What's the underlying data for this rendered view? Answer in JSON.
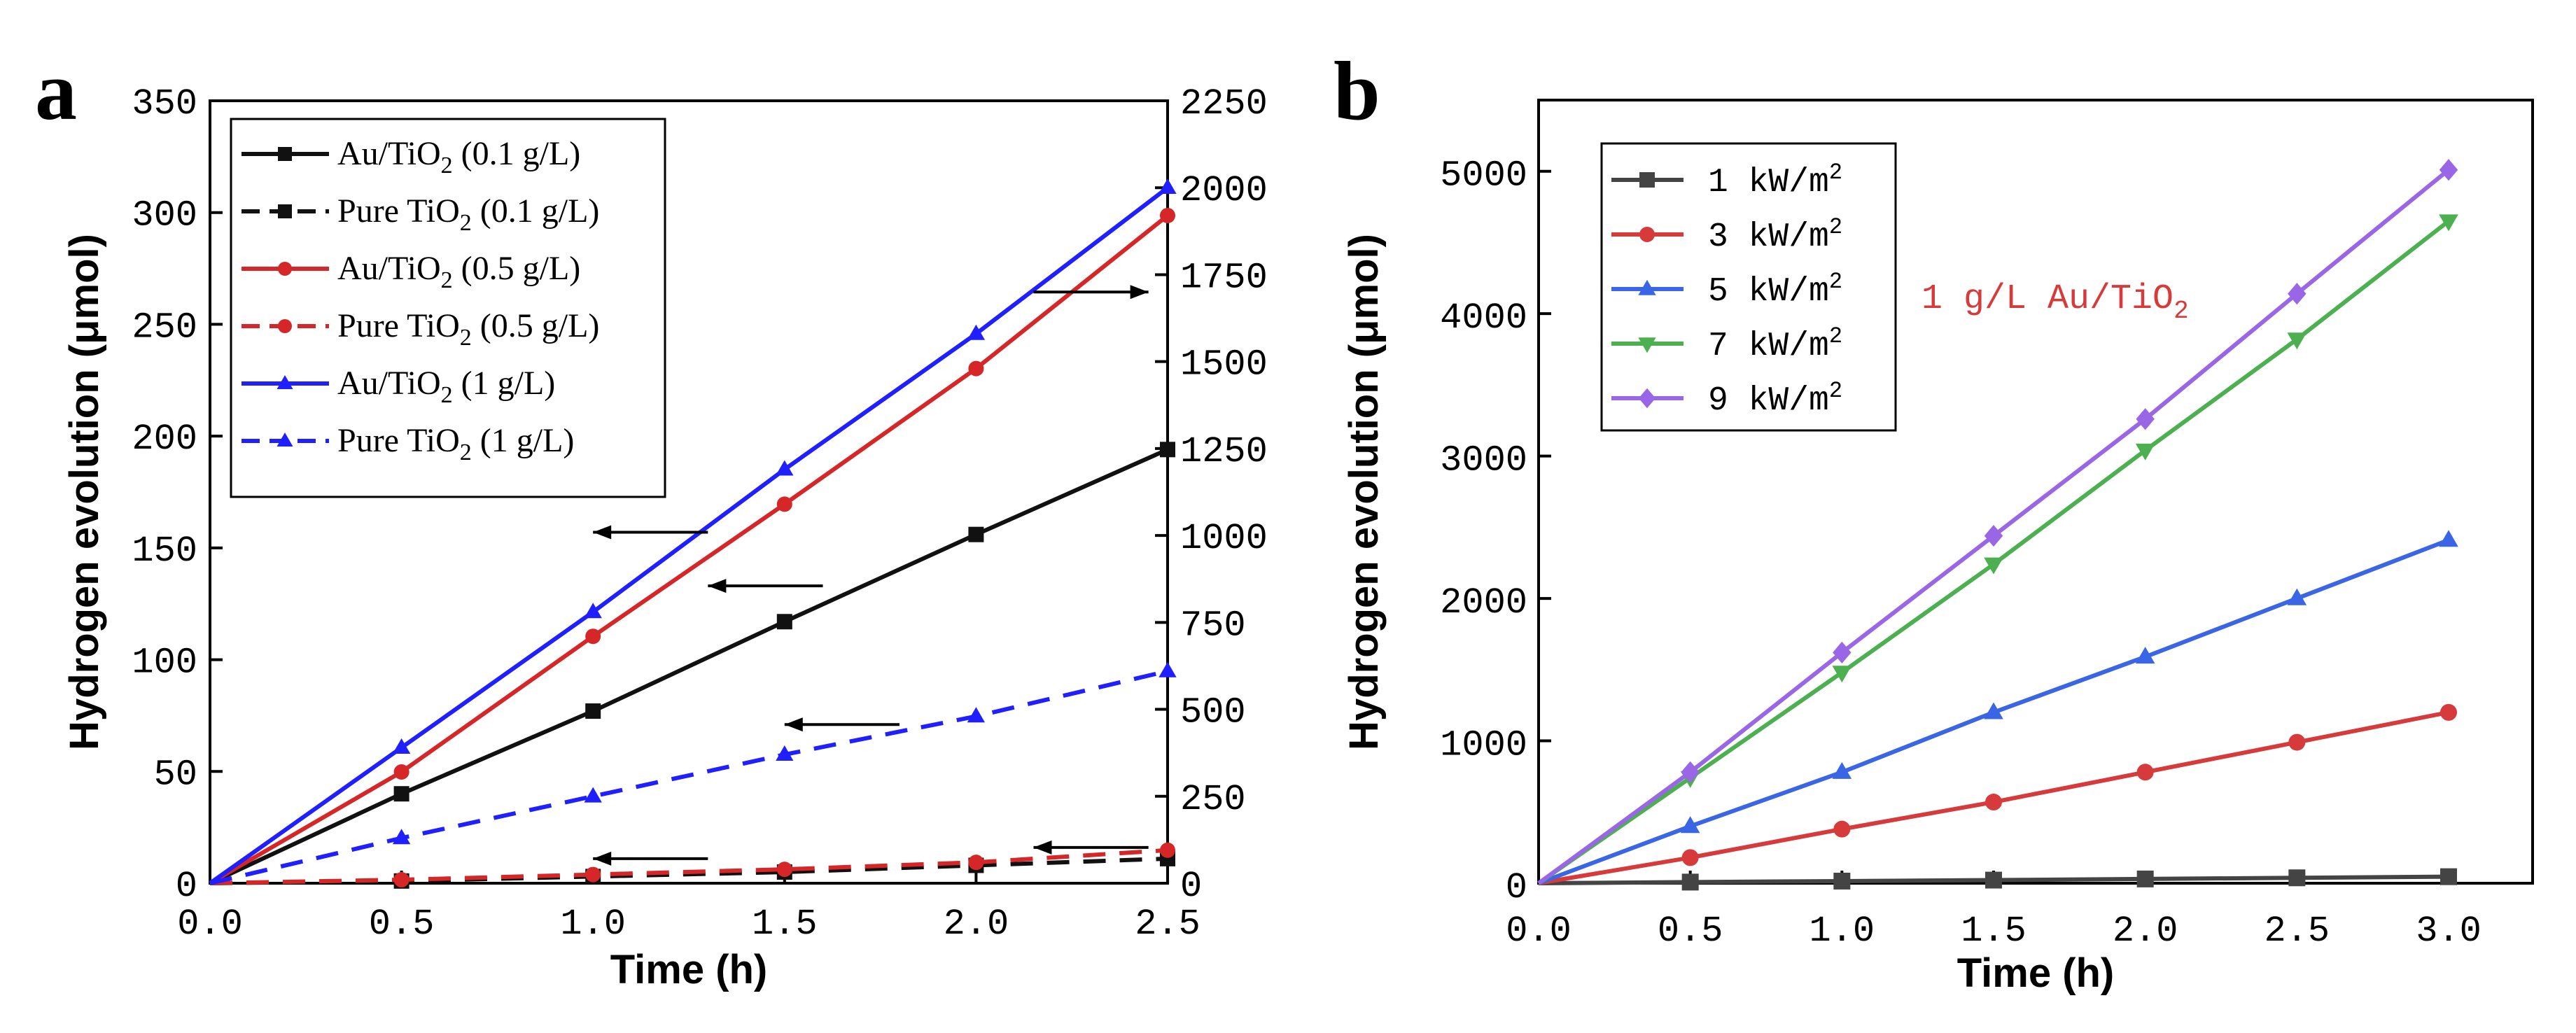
{
  "colors": {
    "black": "#111111",
    "red": "#d62728",
    "blue": "#1f1fff",
    "green": "#4caf50",
    "purple": "#9966e6",
    "gray": "#444444",
    "bred": "#d63a3a",
    "bblue": "#3a66e6"
  },
  "chart_data": [
    {
      "panel_label": "a",
      "type": "line",
      "xlabel": "Time (h)",
      "ylabel": "Hydrogen evolution (μmol)",
      "xlim": [
        0,
        2.5
      ],
      "ylim": [
        0,
        350
      ],
      "y2lim": [
        0,
        2250
      ],
      "x_ticks": [
        "0.0",
        "0.5",
        "1.0",
        "1.5",
        "2.0",
        "2.5"
      ],
      "y_ticks": [
        "0",
        "50",
        "100",
        "150",
        "200",
        "250",
        "300",
        "350"
      ],
      "y2_ticks": [
        "0",
        "250",
        "500",
        "750",
        "1000",
        "1250",
        "1500",
        "1750",
        "2000",
        "2250"
      ],
      "series": [
        {
          "name": "Au/TiO2 (0.1 g/L)",
          "name_pre": "Au/TiO",
          "name_post": " (0.1 g/L)",
          "axis": "left",
          "color": "#111111",
          "dash": false,
          "marker": "square",
          "x": [
            0,
            0.5,
            1.0,
            1.5,
            2.0,
            2.5
          ],
          "y": [
            0,
            40,
            77,
            117,
            156,
            194
          ]
        },
        {
          "name": "Pure TiO2 (0.1 g/L)",
          "name_pre": "Pure TiO",
          "name_post": " (0.1 g/L)",
          "axis": "left",
          "color": "#111111",
          "dash": true,
          "marker": "square",
          "x": [
            0,
            0.5,
            1.0,
            1.5,
            2.0,
            2.5
          ],
          "y": [
            0,
            1,
            3,
            5,
            8,
            11
          ]
        },
        {
          "name": "Au/TiO2 (0.5 g/L)",
          "name_pre": "Au/TiO",
          "name_post": " (0.5 g/L)",
          "axis": "right",
          "color": "#d62728",
          "dash": false,
          "marker": "circle",
          "x": [
            0,
            0.5,
            1.0,
            1.5,
            2.0,
            2.5
          ],
          "y": [
            0,
            320,
            710,
            1090,
            1480,
            1920
          ]
        },
        {
          "name": "Pure TiO2 (0.5 g/L)",
          "name_pre": "Pure TiO",
          "name_post": " (0.5 g/L)",
          "axis": "right",
          "color": "#d62728",
          "dash": true,
          "marker": "circle",
          "x": [
            0,
            0.5,
            1.0,
            1.5,
            2.0,
            2.5
          ],
          "y": [
            0,
            10,
            25,
            40,
            60,
            95
          ]
        },
        {
          "name": "Au/TiO2 (1 g/L)",
          "name_pre": "Au/TiO",
          "name_post": " (1 g/L)",
          "axis": "right",
          "color": "#1f1fff",
          "dash": false,
          "marker": "triangle",
          "x": [
            0,
            0.5,
            1.0,
            1.5,
            2.0,
            2.5
          ],
          "y": [
            0,
            390,
            780,
            1190,
            1580,
            2000
          ]
        },
        {
          "name": "Pure TiO2 (1 g/L)",
          "name_pre": "Pure TiO",
          "name_post": " (1 g/L)",
          "axis": "right",
          "color": "#1f1fff",
          "dash": true,
          "marker": "triangle",
          "x": [
            0,
            0.5,
            1.0,
            1.5,
            2.0,
            2.5
          ],
          "y": [
            0,
            130,
            250,
            370,
            480,
            610
          ]
        }
      ],
      "arrows": [
        {
          "direction": "left",
          "x_from": 1.3,
          "x_to": 1.0,
          "y": 157,
          "axis": "left"
        },
        {
          "direction": "left",
          "x_from": 1.6,
          "x_to": 1.3,
          "y": 133,
          "axis": "left"
        },
        {
          "direction": "left",
          "x_from": 1.8,
          "x_to": 1.5,
          "y": 71,
          "axis": "left"
        },
        {
          "direction": "left",
          "x_from": 1.3,
          "x_to": 1.0,
          "y": 11,
          "axis": "left"
        },
        {
          "direction": "left",
          "x_from": 2.45,
          "x_to": 2.15,
          "y": 16,
          "axis": "left"
        },
        {
          "direction": "right",
          "x_from": 2.15,
          "x_to": 2.45,
          "y": 1700,
          "axis": "right"
        }
      ]
    },
    {
      "panel_label": "b",
      "type": "line",
      "xlabel": "Time (h)",
      "ylabel": "Hydrogen evolution (μmol)",
      "xlim": [
        0,
        3.0
      ],
      "ylim": [
        0,
        5500
      ],
      "x_ticks": [
        "0.0",
        "0.5",
        "1.0",
        "1.5",
        "2.0",
        "2.5",
        "3.0"
      ],
      "y_ticks": [
        "0",
        "1000",
        "2000",
        "3000",
        "4000",
        "5000"
      ],
      "annotation_pre": "1 g/L Au/TiO",
      "annotation_sub": "2",
      "series": [
        {
          "name": "1 kW/m2",
          "name_pre": "1 kW/m",
          "color": "#444444",
          "marker": "square",
          "x": [
            0,
            0.5,
            1.0,
            1.5,
            2.0,
            2.5,
            3.0
          ],
          "y": [
            0,
            8,
            15,
            22,
            30,
            38,
            46
          ]
        },
        {
          "name": "3 kW/m2",
          "name_pre": "3 kW/m",
          "color": "#d63a3a",
          "marker": "circle",
          "x": [
            0,
            0.5,
            1.0,
            1.5,
            2.0,
            2.5,
            3.0
          ],
          "y": [
            0,
            180,
            380,
            570,
            780,
            990,
            1200
          ]
        },
        {
          "name": "5 kW/m2",
          "name_pre": "5 kW/m",
          "color": "#3a66e6",
          "marker": "triangle",
          "x": [
            0,
            0.5,
            1.0,
            1.5,
            2.0,
            2.5,
            3.0
          ],
          "y": [
            0,
            400,
            780,
            1200,
            1590,
            2000,
            2410
          ]
        },
        {
          "name": "7 kW/m2",
          "name_pre": "7 kW/m",
          "color": "#4caf50",
          "marker": "triangle-down",
          "x": [
            0,
            0.5,
            1.0,
            1.5,
            2.0,
            2.5,
            3.0
          ],
          "y": [
            0,
            740,
            1480,
            2240,
            3040,
            3820,
            4650
          ]
        },
        {
          "name": "9 kW/m2",
          "name_pre": "9 kW/m",
          "color": "#9966e6",
          "marker": "diamond",
          "x": [
            0,
            0.5,
            1.0,
            1.5,
            2.0,
            2.5,
            3.0
          ],
          "y": [
            0,
            780,
            1620,
            2440,
            3260,
            4140,
            5010
          ]
        }
      ]
    }
  ]
}
